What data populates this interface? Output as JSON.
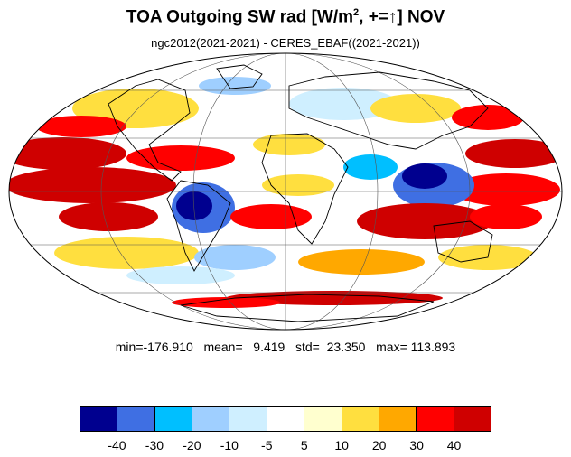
{
  "title_main": "TOA Outgoing SW rad [W/m",
  "title_sup": "2",
  "title_rest": ", +=↑] NOV",
  "subtitle": "ngc2012(2021-2021) - CERES_EBAF((2021-2021))",
  "stats": {
    "min": "-176.910",
    "mean": "9.419",
    "std": "23.350",
    "max": "113.893",
    "text": "min=-176.910   mean=   9.419   std=  23.350   max= 113.893"
  },
  "colorbar": {
    "colors": [
      "#00008f",
      "#3f6fe3",
      "#00bfff",
      "#9fcfff",
      "#cfefff",
      "#ffffff",
      "#ffffcf",
      "#ffdf3f",
      "#ffa800",
      "#ff0000",
      "#cf0000"
    ],
    "labels": [
      "-40",
      "-30",
      "-20",
      "-10",
      "-5",
      "5",
      "10",
      "20",
      "30",
      "40"
    ]
  },
  "map_colors": {
    "ocean_bg": "#ffffff",
    "strong_pos": "#cf0000",
    "pos": "#ff0000",
    "mid_pos": "#ffa800",
    "weak_pos": "#ffdf3f",
    "faint_pos": "#ffffcf",
    "faint_neg": "#cfefff",
    "weak_neg": "#9fcfff",
    "mid_neg": "#00bfff",
    "neg": "#3f6fe3",
    "strong_neg": "#00008f"
  },
  "projection": "mollweide"
}
